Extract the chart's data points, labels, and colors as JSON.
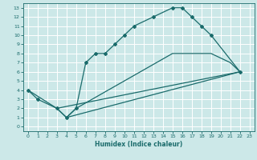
{
  "xlabel": "Humidex (Indice chaleur)",
  "bg_color": "#cce8e8",
  "line_color": "#1a6b6b",
  "grid_color": "#ffffff",
  "xlim": [
    -0.5,
    23.5
  ],
  "ylim": [
    -0.5,
    13.5
  ],
  "xticks": [
    0,
    1,
    2,
    3,
    4,
    5,
    6,
    7,
    8,
    9,
    10,
    11,
    12,
    13,
    14,
    15,
    16,
    17,
    18,
    19,
    20,
    21,
    22,
    23
  ],
  "yticks": [
    0,
    1,
    2,
    3,
    4,
    5,
    6,
    7,
    8,
    9,
    10,
    11,
    12,
    13
  ],
  "line1_x": [
    0,
    1,
    3,
    4,
    5,
    6,
    7,
    8,
    9,
    10,
    11,
    13,
    15,
    16,
    17,
    18,
    19,
    22
  ],
  "line1_y": [
    4,
    3,
    2,
    1,
    2,
    7,
    8,
    8,
    9,
    10,
    11,
    12,
    13,
    13,
    12,
    11,
    10,
    6
  ],
  "line2_x": [
    0,
    3,
    4,
    5,
    15,
    19,
    21,
    22
  ],
  "line2_y": [
    4,
    2,
    1,
    2,
    8,
    8,
    7,
    6
  ],
  "line3_x": [
    3,
    22
  ],
  "line3_y": [
    2,
    6
  ],
  "line4_x": [
    4,
    22
  ],
  "line4_y": [
    1,
    6
  ]
}
